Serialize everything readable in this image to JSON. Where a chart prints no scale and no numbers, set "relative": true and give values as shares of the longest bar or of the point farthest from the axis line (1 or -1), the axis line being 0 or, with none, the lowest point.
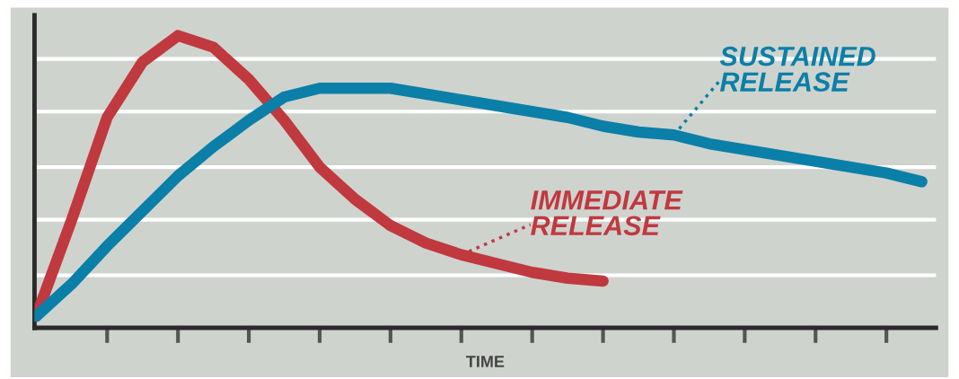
{
  "chart_data": {
    "type": "line",
    "relative": true,
    "xlabel": "TIME",
    "categories": [
      null,
      null,
      null,
      null,
      null,
      null,
      null,
      null,
      null,
      null,
      null,
      null,
      null,
      null,
      null,
      null,
      null,
      null,
      null,
      null,
      null,
      null,
      null,
      null,
      null,
      null
    ],
    "series": [
      {
        "name": "IMMEDIATE\nRELEASE",
        "color": "#c0393f",
        "values": [
          0.04,
          0.37,
          0.72,
          0.91,
          1.0,
          0.96,
          0.85,
          0.71,
          0.55,
          0.44,
          0.35,
          0.29,
          0.25,
          0.22,
          0.19,
          0.17,
          0.16,
          null,
          null,
          null,
          null,
          null,
          null,
          null,
          null,
          null
        ]
      },
      {
        "name": "SUSTAINED\nRELEASE",
        "color": "#0a7fa8",
        "values": [
          0.04,
          0.15,
          0.28,
          0.4,
          0.52,
          0.62,
          0.71,
          0.79,
          0.82,
          0.82,
          0.82,
          0.8,
          0.78,
          0.76,
          0.74,
          0.72,
          0.69,
          0.67,
          0.66,
          0.63,
          0.61,
          0.59,
          0.57,
          0.55,
          0.53,
          0.5
        ]
      }
    ],
    "ref_lines": [
      {
        "axis": "y",
        "value": 0.18,
        "color": "#ffffff"
      },
      {
        "axis": "y",
        "value": 0.37,
        "color": "#ffffff"
      },
      {
        "axis": "y",
        "value": 0.55,
        "color": "#ffffff"
      },
      {
        "axis": "y",
        "value": 0.74,
        "color": "#ffffff"
      },
      {
        "axis": "y",
        "value": 0.92,
        "color": "#ffffff"
      }
    ],
    "legend": false,
    "marker": "none",
    "line_style": "solid"
  }
}
